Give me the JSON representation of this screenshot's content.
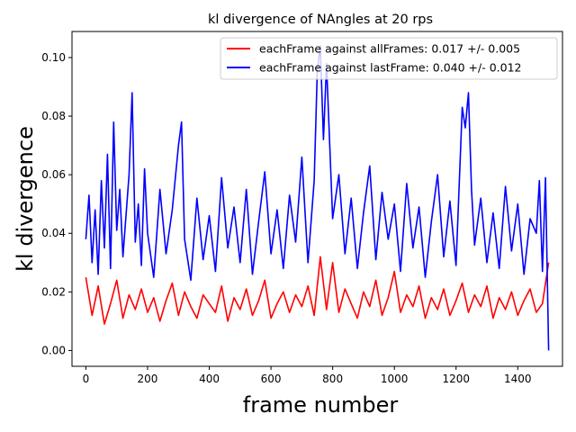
{
  "chart_data": {
    "type": "line",
    "title": "kl divergence of NAngles at 20 rps",
    "xlabel": "frame number",
    "ylabel": "kl divergence",
    "xlim": [
      -45,
      1545
    ],
    "ylim": [
      -0.0054,
      0.1089
    ],
    "xticks": [
      0,
      200,
      400,
      600,
      800,
      1000,
      1200,
      1400
    ],
    "xtick_labels": [
      "0",
      "200",
      "400",
      "600",
      "800",
      "1000",
      "1200",
      "1400"
    ],
    "yticks": [
      0.0,
      0.02,
      0.04,
      0.06,
      0.08,
      0.1
    ],
    "ytick_labels": [
      "0.00",
      "0.02",
      "0.04",
      "0.06",
      "0.08",
      "0.10"
    ],
    "grid": false,
    "legend_position": "top-right",
    "series": [
      {
        "name": "eachFrame against allFrames: 0.017 +/- 0.005",
        "color": "#ff0000",
        "x": [
          0,
          20,
          40,
          60,
          80,
          100,
          120,
          140,
          160,
          180,
          200,
          220,
          240,
          260,
          280,
          300,
          320,
          340,
          360,
          380,
          400,
          420,
          440,
          460,
          480,
          500,
          520,
          540,
          560,
          580,
          600,
          620,
          640,
          660,
          680,
          700,
          720,
          740,
          760,
          780,
          800,
          820,
          840,
          860,
          880,
          900,
          920,
          940,
          960,
          980,
          1000,
          1020,
          1040,
          1060,
          1080,
          1100,
          1120,
          1140,
          1160,
          1180,
          1200,
          1220,
          1240,
          1260,
          1280,
          1300,
          1320,
          1340,
          1360,
          1380,
          1400,
          1420,
          1440,
          1460,
          1480,
          1500
        ],
        "y": [
          0.025,
          0.012,
          0.022,
          0.009,
          0.016,
          0.024,
          0.011,
          0.019,
          0.014,
          0.021,
          0.013,
          0.018,
          0.01,
          0.017,
          0.023,
          0.012,
          0.02,
          0.015,
          0.011,
          0.019,
          0.016,
          0.013,
          0.022,
          0.01,
          0.018,
          0.014,
          0.021,
          0.012,
          0.017,
          0.024,
          0.011,
          0.016,
          0.02,
          0.013,
          0.019,
          0.015,
          0.022,
          0.012,
          0.032,
          0.014,
          0.03,
          0.013,
          0.021,
          0.016,
          0.011,
          0.02,
          0.015,
          0.024,
          0.012,
          0.018,
          0.027,
          0.013,
          0.019,
          0.015,
          0.022,
          0.011,
          0.018,
          0.014,
          0.021,
          0.012,
          0.017,
          0.023,
          0.013,
          0.019,
          0.015,
          0.022,
          0.011,
          0.018,
          0.014,
          0.02,
          0.012,
          0.017,
          0.021,
          0.013,
          0.016,
          0.03
        ]
      },
      {
        "name": "eachFrame against lastFrame: 0.040 +/- 0.012",
        "color": "#0000ff",
        "x": [
          0,
          10,
          20,
          30,
          40,
          50,
          60,
          70,
          80,
          90,
          100,
          110,
          120,
          130,
          140,
          150,
          160,
          170,
          180,
          190,
          200,
          220,
          240,
          260,
          280,
          300,
          310,
          320,
          340,
          360,
          380,
          400,
          420,
          440,
          460,
          480,
          500,
          520,
          540,
          560,
          580,
          600,
          620,
          640,
          660,
          680,
          700,
          720,
          740,
          750,
          760,
          770,
          780,
          800,
          820,
          840,
          860,
          880,
          900,
          920,
          940,
          960,
          980,
          1000,
          1020,
          1040,
          1060,
          1080,
          1100,
          1120,
          1140,
          1160,
          1180,
          1200,
          1220,
          1230,
          1240,
          1250,
          1260,
          1280,
          1300,
          1320,
          1340,
          1360,
          1380,
          1400,
          1420,
          1440,
          1460,
          1470,
          1480,
          1490,
          1500
        ],
        "y": [
          0.038,
          0.053,
          0.03,
          0.048,
          0.026,
          0.058,
          0.035,
          0.067,
          0.028,
          0.078,
          0.041,
          0.055,
          0.032,
          0.046,
          0.06,
          0.088,
          0.037,
          0.05,
          0.029,
          0.062,
          0.04,
          0.025,
          0.055,
          0.033,
          0.048,
          0.07,
          0.078,
          0.038,
          0.024,
          0.052,
          0.031,
          0.046,
          0.027,
          0.059,
          0.035,
          0.049,
          0.03,
          0.055,
          0.026,
          0.044,
          0.061,
          0.033,
          0.048,
          0.028,
          0.053,
          0.037,
          0.066,
          0.03,
          0.058,
          0.095,
          0.104,
          0.072,
          0.098,
          0.045,
          0.06,
          0.033,
          0.052,
          0.028,
          0.047,
          0.063,
          0.031,
          0.054,
          0.038,
          0.05,
          0.027,
          0.057,
          0.035,
          0.049,
          0.025,
          0.044,
          0.06,
          0.032,
          0.051,
          0.029,
          0.083,
          0.076,
          0.088,
          0.055,
          0.036,
          0.052,
          0.03,
          0.047,
          0.028,
          0.056,
          0.034,
          0.05,
          0.026,
          0.045,
          0.04,
          0.058,
          0.027,
          0.059,
          0.0
        ]
      }
    ]
  }
}
